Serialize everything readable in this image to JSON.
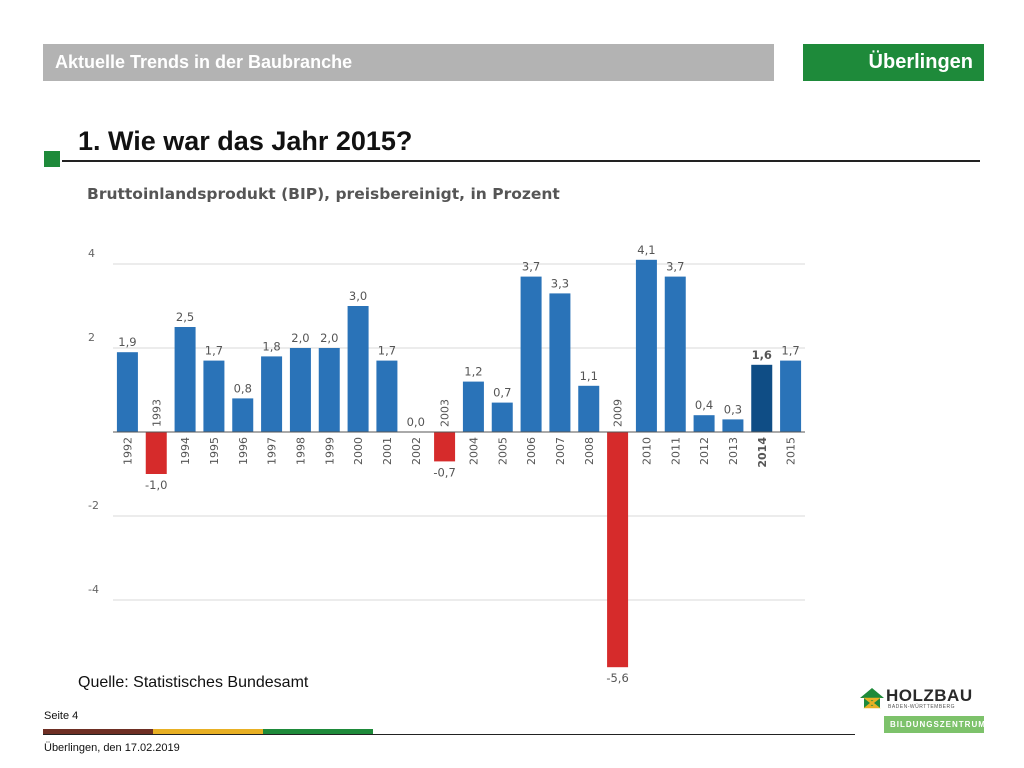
{
  "header": {
    "section_title": "Aktuelle Trends in der Baubranche",
    "location": "Überlingen"
  },
  "page": {
    "title": "1. Wie war das Jahr 2015?",
    "source": "Quelle: Statistisches Bundesamt",
    "page_number": "Seite 4",
    "date": "Überlingen, den 17.02.2019"
  },
  "logo": {
    "name": "HOLZBAU",
    "region": "BADEN-WÜRTTEMBERG",
    "subtitle": "BILDUNGSZENTRUM"
  },
  "colors": {
    "bar_positive": "#2a73b8",
    "bar_negative": "#d62b2b",
    "bar_highlight": "#0f4d85",
    "accent_green": "#1e8a3a",
    "stripe_brown": "#6e2f24",
    "stripe_yellow": "#e8b024",
    "stripe_green": "#1e8a3a"
  },
  "chart_data": {
    "type": "bar",
    "title": "Bruttoinlandsprodukt (BIP), preisbereinigt, in Prozent",
    "categories": [
      "1992",
      "1993",
      "1994",
      "1995",
      "1996",
      "1997",
      "1998",
      "1999",
      "2000",
      "2001",
      "2002",
      "2003",
      "2004",
      "2005",
      "2006",
      "2007",
      "2008",
      "2009",
      "2010",
      "2011",
      "2012",
      "2013",
      "2014",
      "2015"
    ],
    "values": [
      1.9,
      -1.0,
      2.5,
      1.7,
      0.8,
      1.8,
      2.0,
      2.0,
      3.0,
      1.7,
      0.0,
      -0.7,
      1.2,
      0.7,
      3.7,
      3.3,
      1.1,
      -5.6,
      4.1,
      3.7,
      0.4,
      0.3,
      1.6,
      1.7
    ],
    "value_labels": [
      "1,9",
      "-1,0",
      "2,5",
      "1,7",
      "0,8",
      "1,8",
      "2,0",
      "2,0",
      "3,0",
      "1,7",
      "0,0",
      "-0,7",
      "1,2",
      "0,7",
      "3,7",
      "3,3",
      "1,1",
      "-5,6",
      "4,1",
      "3,7",
      "0,4",
      "0,3",
      "1,6",
      "1,7"
    ],
    "highlight": "2014",
    "yticks": [
      4,
      2,
      -2,
      -4
    ],
    "ylim": [
      -5.6,
      4.1
    ],
    "grid": true,
    "legend": "none"
  }
}
